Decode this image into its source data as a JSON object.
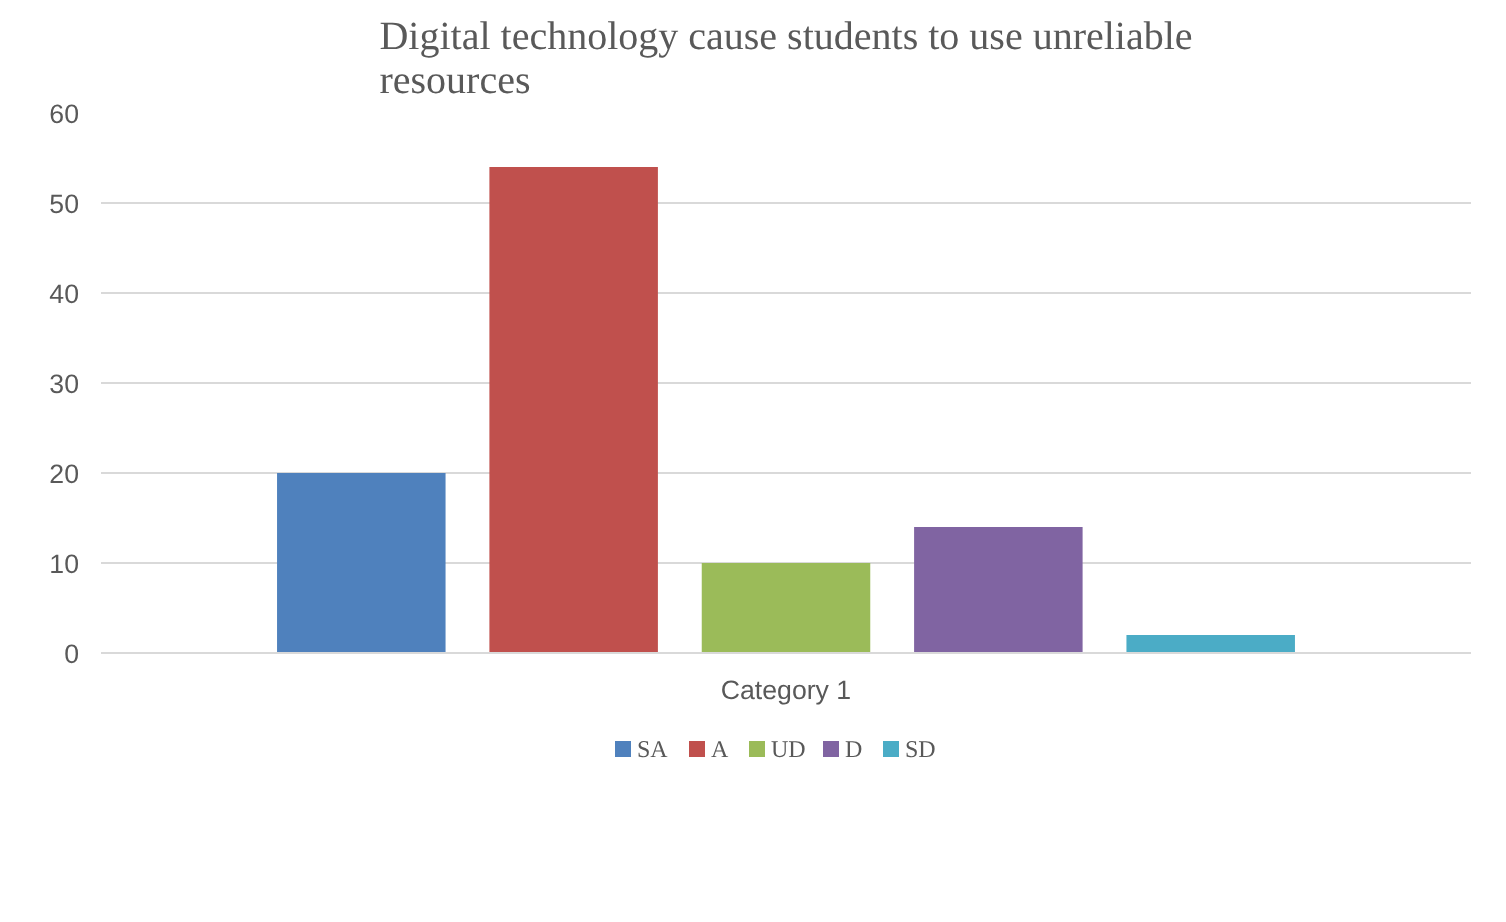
{
  "chart_data": {
    "type": "bar",
    "title": "Digital technology cause students to use unreliable resources",
    "categories": [
      "Category 1"
    ],
    "series": [
      {
        "name": "SA",
        "color": "#4f81bd",
        "values": [
          20
        ]
      },
      {
        "name": "A",
        "color": "#c0504d",
        "values": [
          54
        ]
      },
      {
        "name": "UD",
        "color": "#9bbb59",
        "values": [
          10
        ]
      },
      {
        "name": "D",
        "color": "#8064a2",
        "values": [
          14
        ]
      },
      {
        "name": "SD",
        "color": "#4bacc6",
        "values": [
          2
        ]
      }
    ],
    "ylim": [
      0,
      60
    ],
    "yticks": [
      0,
      10,
      20,
      30,
      40,
      50,
      60
    ],
    "grid": "y",
    "legend": "bottom"
  }
}
